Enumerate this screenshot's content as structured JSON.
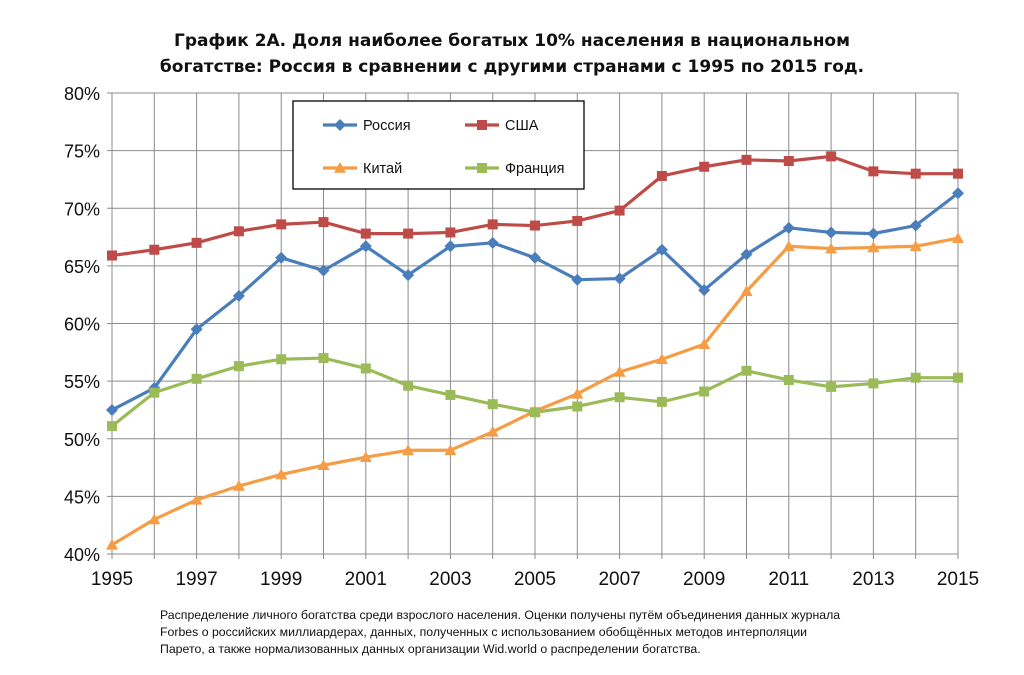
{
  "chart_data": {
    "type": "line",
    "title_line1": "График 2А. Доля наиболее богатых 10% населения в национальном",
    "title_line2": "богатстве: Россия в сравнении с другими странами с 1995 по 2015 год.",
    "x": [
      1995,
      1996,
      1997,
      1998,
      1999,
      2000,
      2001,
      2002,
      2003,
      2004,
      2005,
      2006,
      2007,
      2008,
      2009,
      2010,
      2011,
      2012,
      2013,
      2014,
      2015
    ],
    "x_tick_labels": [
      "1995",
      "1997",
      "1999",
      "2001",
      "2003",
      "2005",
      "2007",
      "2009",
      "2011",
      "2013",
      "2015"
    ],
    "y_tick_labels": [
      "40%",
      "45%",
      "50%",
      "55%",
      "60%",
      "65%",
      "70%",
      "75%",
      "80%"
    ],
    "ylim": [
      40,
      80
    ],
    "y_unit": "%",
    "grid": true,
    "legend_position": "top-left inside plot",
    "series": [
      {
        "name": "Россия",
        "color": "#4a7ebb",
        "marker": "diamond",
        "values": [
          52.5,
          54.4,
          59.5,
          62.4,
          65.7,
          64.6,
          66.7,
          64.2,
          66.7,
          67.0,
          65.7,
          63.8,
          63.9,
          66.4,
          62.9,
          66.0,
          68.3,
          67.9,
          67.8,
          68.5,
          71.3
        ]
      },
      {
        "name": "США",
        "color": "#be4b48",
        "marker": "square",
        "values": [
          65.9,
          66.4,
          67.0,
          68.0,
          68.6,
          68.8,
          67.8,
          67.8,
          67.9,
          68.6,
          68.5,
          68.9,
          69.8,
          72.8,
          73.6,
          74.2,
          74.1,
          74.5,
          73.2,
          73.0,
          73.0
        ]
      },
      {
        "name": "Китай",
        "color": "#f59c44",
        "marker": "triangle",
        "values": [
          40.8,
          43.0,
          44.7,
          45.9,
          46.9,
          47.7,
          48.4,
          49.0,
          49.0,
          50.6,
          52.4,
          53.9,
          55.8,
          56.9,
          58.2,
          62.8,
          66.7,
          66.5,
          66.6,
          66.7,
          67.4
        ]
      },
      {
        "name": "Франция",
        "color": "#9bbb59",
        "marker": "square",
        "values": [
          51.1,
          54.0,
          55.2,
          56.3,
          56.9,
          57.0,
          56.1,
          54.6,
          53.8,
          53.0,
          52.3,
          52.8,
          53.6,
          53.2,
          54.1,
          55.9,
          55.1,
          54.5,
          54.8,
          55.3,
          55.3
        ]
      }
    ]
  },
  "footnote": {
    "line1": "Распределение личного богатства среди взрослого населения. Оценки получены путём объединения данных журнала",
    "line2": "Forbes о российских миллиардерах, данных, полученных с использованием обобщённых методов интерполяции",
    "line3": "Парето, а также нормализованных данных организации Wid.world о распределении богатства."
  }
}
